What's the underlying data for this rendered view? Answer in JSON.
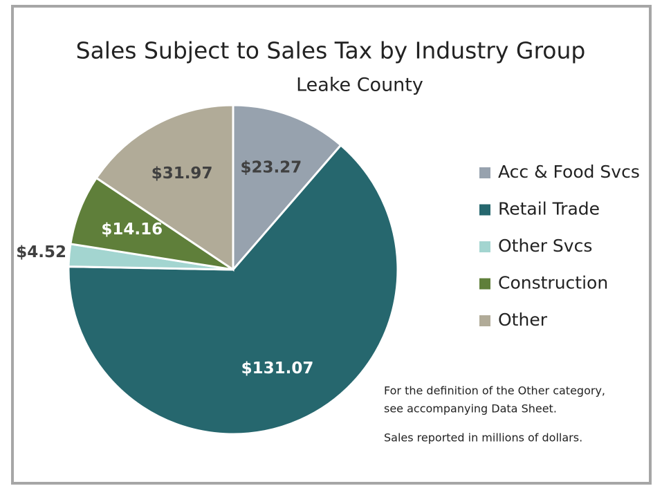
{
  "chart_data": {
    "type": "pie",
    "title": "Sales Subject to Sales Tax by Industry Group",
    "subtitle": "Leake County",
    "categories": [
      "Acc & Food Svcs",
      "Retail Trade",
      "Other Svcs",
      "Construction",
      "Other"
    ],
    "values": [
      23.27,
      131.07,
      4.52,
      14.16,
      31.97
    ],
    "value_labels": [
      "$23.27",
      "$131.07",
      "$4.52",
      "$14.16",
      "$31.97"
    ],
    "colors": [
      "#97a2ae",
      "#26676e",
      "#a3d5d0",
      "#5f7f3a",
      "#b1ab98"
    ],
    "legend": "right",
    "annotations": [
      "For the definition of the Other category,",
      "see accompanying Data Sheet.",
      "Sales reported in millions of dollars."
    ]
  }
}
